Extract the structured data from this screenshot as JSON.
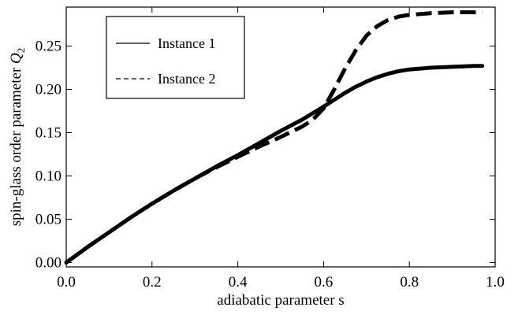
{
  "chart_data": {
    "type": "line",
    "xlabel": "adiabatic parameter s",
    "ylabel_main": "spin-glass order parameter ",
    "ylabel_symbol": "Q",
    "ylabel_subscript": "2",
    "xlim": [
      0.0,
      1.0
    ],
    "ylim": [
      -0.005,
      0.295
    ],
    "xticks": [
      {
        "value": 0.0,
        "label": "0.0"
      },
      {
        "value": 0.2,
        "label": "0.2"
      },
      {
        "value": 0.4,
        "label": "0.4"
      },
      {
        "value": 0.6,
        "label": "0.6"
      },
      {
        "value": 0.8,
        "label": "0.8"
      },
      {
        "value": 1.0,
        "label": "1.0"
      }
    ],
    "yticks": [
      {
        "value": 0.0,
        "label": "0.00"
      },
      {
        "value": 0.05,
        "label": "0.05"
      },
      {
        "value": 0.1,
        "label": "0.10"
      },
      {
        "value": 0.15,
        "label": "0.15"
      },
      {
        "value": 0.2,
        "label": "0.20"
      },
      {
        "value": 0.25,
        "label": "0.25"
      }
    ],
    "legend_position": "top-left",
    "grid": false,
    "series": [
      {
        "name": "Instance 1",
        "style": "solid",
        "color": "#000000",
        "x": [
          0.0,
          0.05,
          0.1,
          0.15,
          0.2,
          0.25,
          0.3,
          0.35,
          0.4,
          0.45,
          0.5,
          0.55,
          0.6,
          0.625,
          0.65,
          0.675,
          0.7,
          0.725,
          0.75,
          0.775,
          0.8,
          0.85,
          0.9,
          0.95,
          0.97
        ],
        "y": [
          0.0,
          0.018,
          0.035,
          0.052,
          0.068,
          0.083,
          0.097,
          0.111,
          0.124,
          0.138,
          0.152,
          0.165,
          0.18,
          0.188,
          0.196,
          0.203,
          0.209,
          0.214,
          0.218,
          0.221,
          0.223,
          0.225,
          0.226,
          0.227,
          0.227
        ]
      },
      {
        "name": "Instance 2",
        "style": "dashed",
        "color": "#000000",
        "x": [
          0.0,
          0.05,
          0.1,
          0.15,
          0.2,
          0.25,
          0.3,
          0.35,
          0.4,
          0.45,
          0.5,
          0.55,
          0.575,
          0.6,
          0.625,
          0.65,
          0.675,
          0.7,
          0.725,
          0.75,
          0.775,
          0.8,
          0.85,
          0.9,
          0.95,
          0.97
        ],
        "y": [
          0.0,
          0.018,
          0.035,
          0.052,
          0.068,
          0.083,
          0.097,
          0.11,
          0.122,
          0.134,
          0.145,
          0.157,
          0.165,
          0.178,
          0.2,
          0.224,
          0.245,
          0.262,
          0.273,
          0.28,
          0.284,
          0.286,
          0.288,
          0.289,
          0.289,
          0.289
        ]
      }
    ]
  }
}
